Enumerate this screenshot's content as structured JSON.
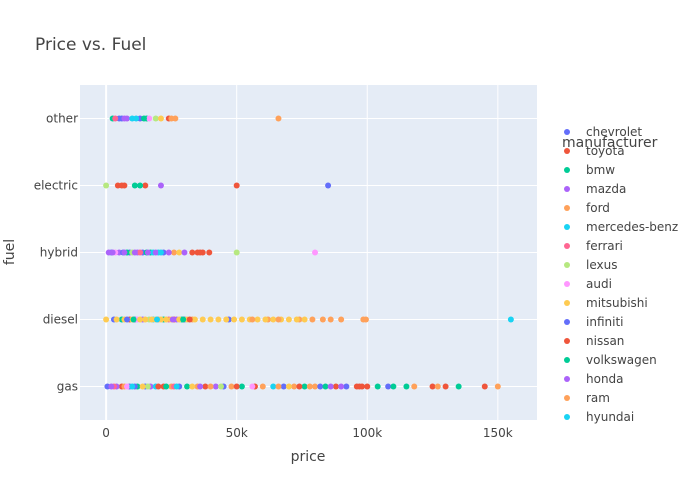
{
  "chart_data": {
    "type": "scatter",
    "title": "Price vs. Fuel",
    "xlabel": "price",
    "ylabel": "fuel",
    "xlim": [
      -10000,
      165000
    ],
    "x_ticks": [
      {
        "value": 0,
        "label": "0"
      },
      {
        "value": 50000,
        "label": "50k"
      },
      {
        "value": 100000,
        "label": "100k"
      },
      {
        "value": 150000,
        "label": "150k"
      }
    ],
    "categories": [
      "gas",
      "diesel",
      "hybrid",
      "electric",
      "other"
    ],
    "grid": true,
    "legend_title": "manufacturer",
    "legend_position": "right",
    "series": [
      {
        "name": "chevrolet",
        "color": "#636efa",
        "points": [
          {
            "x": 500,
            "y": "gas"
          },
          {
            "x": 9000,
            "y": "gas"
          },
          {
            "x": 15000,
            "y": "gas"
          },
          {
            "x": 28000,
            "y": "gas"
          },
          {
            "x": 45000,
            "y": "gas"
          },
          {
            "x": 68000,
            "y": "gas"
          },
          {
            "x": 92000,
            "y": "gas"
          },
          {
            "x": 108000,
            "y": "gas"
          },
          {
            "x": 3000,
            "y": "diesel"
          },
          {
            "x": 11000,
            "y": "diesel"
          },
          {
            "x": 30000,
            "y": "diesel"
          },
          {
            "x": 47000,
            "y": "diesel"
          },
          {
            "x": 2000,
            "y": "hybrid"
          },
          {
            "x": 9000,
            "y": "hybrid"
          },
          {
            "x": 14000,
            "y": "hybrid"
          },
          {
            "x": 22000,
            "y": "hybrid"
          },
          {
            "x": 85000,
            "y": "electric"
          },
          {
            "x": 5000,
            "y": "other"
          },
          {
            "x": 13000,
            "y": "other"
          }
        ]
      },
      {
        "name": "toyota",
        "color": "#ef553b",
        "points": [
          {
            "x": 6000,
            "y": "gas"
          },
          {
            "x": 22000,
            "y": "gas"
          },
          {
            "x": 38000,
            "y": "gas"
          },
          {
            "x": 57000,
            "y": "gas"
          },
          {
            "x": 88000,
            "y": "gas"
          },
          {
            "x": 97000,
            "y": "gas"
          },
          {
            "x": 100000,
            "y": "gas"
          },
          {
            "x": 125000,
            "y": "gas"
          },
          {
            "x": 130000,
            "y": "gas"
          },
          {
            "x": 145000,
            "y": "gas"
          },
          {
            "x": 9000,
            "y": "diesel"
          },
          {
            "x": 26000,
            "y": "diesel"
          },
          {
            "x": 33000,
            "y": "hybrid"
          },
          {
            "x": 35000,
            "y": "hybrid"
          },
          {
            "x": 37000,
            "y": "hybrid"
          },
          {
            "x": 39500,
            "y": "hybrid"
          },
          {
            "x": 4500,
            "y": "electric"
          },
          {
            "x": 7000,
            "y": "electric"
          },
          {
            "x": 15000,
            "y": "electric"
          },
          {
            "x": 50000,
            "y": "electric"
          },
          {
            "x": 24000,
            "y": "other"
          }
        ]
      },
      {
        "name": "bmw",
        "color": "#00cc96",
        "points": [
          {
            "x": 12000,
            "y": "gas"
          },
          {
            "x": 31000,
            "y": "gas"
          },
          {
            "x": 52000,
            "y": "gas"
          },
          {
            "x": 76000,
            "y": "gas"
          },
          {
            "x": 104000,
            "y": "gas"
          },
          {
            "x": 115000,
            "y": "gas"
          },
          {
            "x": 135000,
            "y": "gas"
          },
          {
            "x": 6000,
            "y": "diesel"
          },
          {
            "x": 22000,
            "y": "diesel"
          },
          {
            "x": 29000,
            "y": "diesel"
          },
          {
            "x": 8000,
            "y": "hybrid"
          },
          {
            "x": 17000,
            "y": "hybrid"
          },
          {
            "x": 11000,
            "y": "electric"
          },
          {
            "x": 2500,
            "y": "other"
          },
          {
            "x": 15500,
            "y": "other"
          }
        ]
      },
      {
        "name": "mazda",
        "color": "#ab63fa",
        "points": [
          {
            "x": 4000,
            "y": "gas"
          },
          {
            "x": 17000,
            "y": "gas"
          },
          {
            "x": 42000,
            "y": "gas"
          },
          {
            "x": 90000,
            "y": "gas"
          },
          {
            "x": 14000,
            "y": "diesel"
          },
          {
            "x": 27000,
            "y": "diesel"
          },
          {
            "x": 1000,
            "y": "hybrid"
          },
          {
            "x": 5000,
            "y": "hybrid"
          },
          {
            "x": 12000,
            "y": "hybrid"
          },
          {
            "x": 21000,
            "y": "electric"
          },
          {
            "x": 8000,
            "y": "other"
          }
        ]
      },
      {
        "name": "ford",
        "color": "#ffa15a",
        "points": [
          {
            "x": 7000,
            "y": "gas"
          },
          {
            "x": 25000,
            "y": "gas"
          },
          {
            "x": 35000,
            "y": "gas"
          },
          {
            "x": 48000,
            "y": "gas"
          },
          {
            "x": 60000,
            "y": "gas"
          },
          {
            "x": 72000,
            "y": "gas"
          },
          {
            "x": 80000,
            "y": "gas"
          },
          {
            "x": 118000,
            "y": "gas"
          },
          {
            "x": 150000,
            "y": "gas"
          },
          {
            "x": 20000,
            "y": "diesel"
          },
          {
            "x": 33000,
            "y": "diesel"
          },
          {
            "x": 62000,
            "y": "diesel"
          },
          {
            "x": 74000,
            "y": "diesel"
          },
          {
            "x": 83000,
            "y": "diesel"
          },
          {
            "x": 90000,
            "y": "diesel"
          },
          {
            "x": 98500,
            "y": "diesel"
          },
          {
            "x": 99500,
            "y": "diesel"
          },
          {
            "x": 26000,
            "y": "hybrid"
          },
          {
            "x": 25000,
            "y": "other"
          },
          {
            "x": 66000,
            "y": "other"
          }
        ]
      },
      {
        "name": "mercedes-benz",
        "color": "#19d3f3",
        "points": [
          {
            "x": 19000,
            "y": "gas"
          },
          {
            "x": 64000,
            "y": "gas"
          },
          {
            "x": 18000,
            "y": "diesel"
          },
          {
            "x": 155000,
            "y": "diesel"
          },
          {
            "x": 18000,
            "y": "hybrid"
          },
          {
            "x": 20000,
            "y": "hybrid"
          },
          {
            "x": 10000,
            "y": "other"
          }
        ]
      },
      {
        "name": "ferrari",
        "color": "#ff6692",
        "points": [
          {
            "x": 3000,
            "y": "gas"
          },
          {
            "x": 26000,
            "y": "gas"
          },
          {
            "x": 24000,
            "y": "diesel"
          },
          {
            "x": 13000,
            "y": "hybrid"
          },
          {
            "x": 3500,
            "y": "other"
          }
        ]
      },
      {
        "name": "lexus",
        "color": "#b6e880",
        "points": [
          {
            "x": 16000,
            "y": "gas"
          },
          {
            "x": 44000,
            "y": "gas"
          },
          {
            "x": 16500,
            "y": "diesel"
          },
          {
            "x": 10000,
            "y": "hybrid"
          },
          {
            "x": 50000,
            "y": "hybrid"
          },
          {
            "x": 0,
            "y": "electric"
          },
          {
            "x": 19000,
            "y": "other"
          }
        ]
      },
      {
        "name": "audi",
        "color": "#ff97ff",
        "points": [
          {
            "x": 8000,
            "y": "gas"
          },
          {
            "x": 56000,
            "y": "gas"
          },
          {
            "x": 12000,
            "y": "diesel"
          },
          {
            "x": 3500,
            "y": "hybrid"
          },
          {
            "x": 80000,
            "y": "hybrid"
          },
          {
            "x": 16500,
            "y": "other"
          }
        ]
      },
      {
        "name": "mitsubishi",
        "color": "#fecb52",
        "points": [
          {
            "x": 14000,
            "y": "gas"
          },
          {
            "x": 33000,
            "y": "gas"
          },
          {
            "x": 70000,
            "y": "gas"
          },
          {
            "x": 0,
            "y": "diesel"
          },
          {
            "x": 4000,
            "y": "diesel"
          },
          {
            "x": 7000,
            "y": "diesel"
          },
          {
            "x": 10000,
            "y": "diesel"
          },
          {
            "x": 13000,
            "y": "diesel"
          },
          {
            "x": 15000,
            "y": "diesel"
          },
          {
            "x": 17500,
            "y": "diesel"
          },
          {
            "x": 19000,
            "y": "diesel"
          },
          {
            "x": 21000,
            "y": "diesel"
          },
          {
            "x": 23000,
            "y": "diesel"
          },
          {
            "x": 25000,
            "y": "diesel"
          },
          {
            "x": 28000,
            "y": "diesel"
          },
          {
            "x": 31000,
            "y": "diesel"
          },
          {
            "x": 34000,
            "y": "diesel"
          },
          {
            "x": 37000,
            "y": "diesel"
          },
          {
            "x": 40000,
            "y": "diesel"
          },
          {
            "x": 43000,
            "y": "diesel"
          },
          {
            "x": 46000,
            "y": "diesel"
          },
          {
            "x": 49000,
            "y": "diesel"
          },
          {
            "x": 52000,
            "y": "diesel"
          },
          {
            "x": 55000,
            "y": "diesel"
          },
          {
            "x": 58000,
            "y": "diesel"
          },
          {
            "x": 61000,
            "y": "diesel"
          },
          {
            "x": 64000,
            "y": "diesel"
          },
          {
            "x": 67000,
            "y": "diesel"
          },
          {
            "x": 70000,
            "y": "diesel"
          },
          {
            "x": 73000,
            "y": "diesel"
          },
          {
            "x": 76000,
            "y": "diesel"
          },
          {
            "x": 28000,
            "y": "hybrid"
          },
          {
            "x": 21000,
            "y": "other"
          }
        ]
      },
      {
        "name": "infiniti",
        "color": "#636efa",
        "points": [
          {
            "x": 11000,
            "y": "gas"
          },
          {
            "x": 82000,
            "y": "gas"
          },
          {
            "x": 8000,
            "y": "diesel"
          },
          {
            "x": 6500,
            "y": "hybrid"
          },
          {
            "x": 6000,
            "y": "other"
          }
        ]
      },
      {
        "name": "nissan",
        "color": "#ef553b",
        "points": [
          {
            "x": 20000,
            "y": "gas"
          },
          {
            "x": 50000,
            "y": "gas"
          },
          {
            "x": 74000,
            "y": "gas"
          },
          {
            "x": 96000,
            "y": "gas"
          },
          {
            "x": 98000,
            "y": "gas"
          },
          {
            "x": 32000,
            "y": "diesel"
          },
          {
            "x": 36000,
            "y": "hybrid"
          },
          {
            "x": 6000,
            "y": "electric"
          }
        ]
      },
      {
        "name": "volkswagen",
        "color": "#00cc96",
        "points": [
          {
            "x": 23000,
            "y": "gas"
          },
          {
            "x": 84000,
            "y": "gas"
          },
          {
            "x": 110000,
            "y": "gas"
          },
          {
            "x": 10500,
            "y": "diesel"
          },
          {
            "x": 29500,
            "y": "diesel"
          },
          {
            "x": 15500,
            "y": "hybrid"
          },
          {
            "x": 13000,
            "y": "electric"
          },
          {
            "x": 14500,
            "y": "other"
          }
        ]
      },
      {
        "name": "honda",
        "color": "#ab63fa",
        "points": [
          {
            "x": 2000,
            "y": "gas"
          },
          {
            "x": 36000,
            "y": "gas"
          },
          {
            "x": 86000,
            "y": "gas"
          },
          {
            "x": 25500,
            "y": "diesel"
          },
          {
            "x": 2500,
            "y": "hybrid"
          },
          {
            "x": 7000,
            "y": "hybrid"
          },
          {
            "x": 11000,
            "y": "hybrid"
          },
          {
            "x": 16000,
            "y": "hybrid"
          },
          {
            "x": 19000,
            "y": "hybrid"
          },
          {
            "x": 24000,
            "y": "hybrid"
          },
          {
            "x": 30000,
            "y": "hybrid"
          },
          {
            "x": 7000,
            "y": "other"
          }
        ]
      },
      {
        "name": "ram",
        "color": "#ffa15a",
        "points": [
          {
            "x": 40000,
            "y": "gas"
          },
          {
            "x": 66000,
            "y": "gas"
          },
          {
            "x": 78000,
            "y": "gas"
          },
          {
            "x": 127000,
            "y": "gas"
          },
          {
            "x": 56000,
            "y": "diesel"
          },
          {
            "x": 66000,
            "y": "diesel"
          },
          {
            "x": 79000,
            "y": "diesel"
          },
          {
            "x": 86000,
            "y": "diesel"
          },
          {
            "x": 26500,
            "y": "other"
          }
        ]
      },
      {
        "name": "hyundai",
        "color": "#19d3f3",
        "points": [
          {
            "x": 10000,
            "y": "gas"
          },
          {
            "x": 27000,
            "y": "gas"
          },
          {
            "x": 19500,
            "y": "diesel"
          },
          {
            "x": 21000,
            "y": "hybrid"
          },
          {
            "x": 11500,
            "y": "other"
          }
        ]
      }
    ]
  }
}
